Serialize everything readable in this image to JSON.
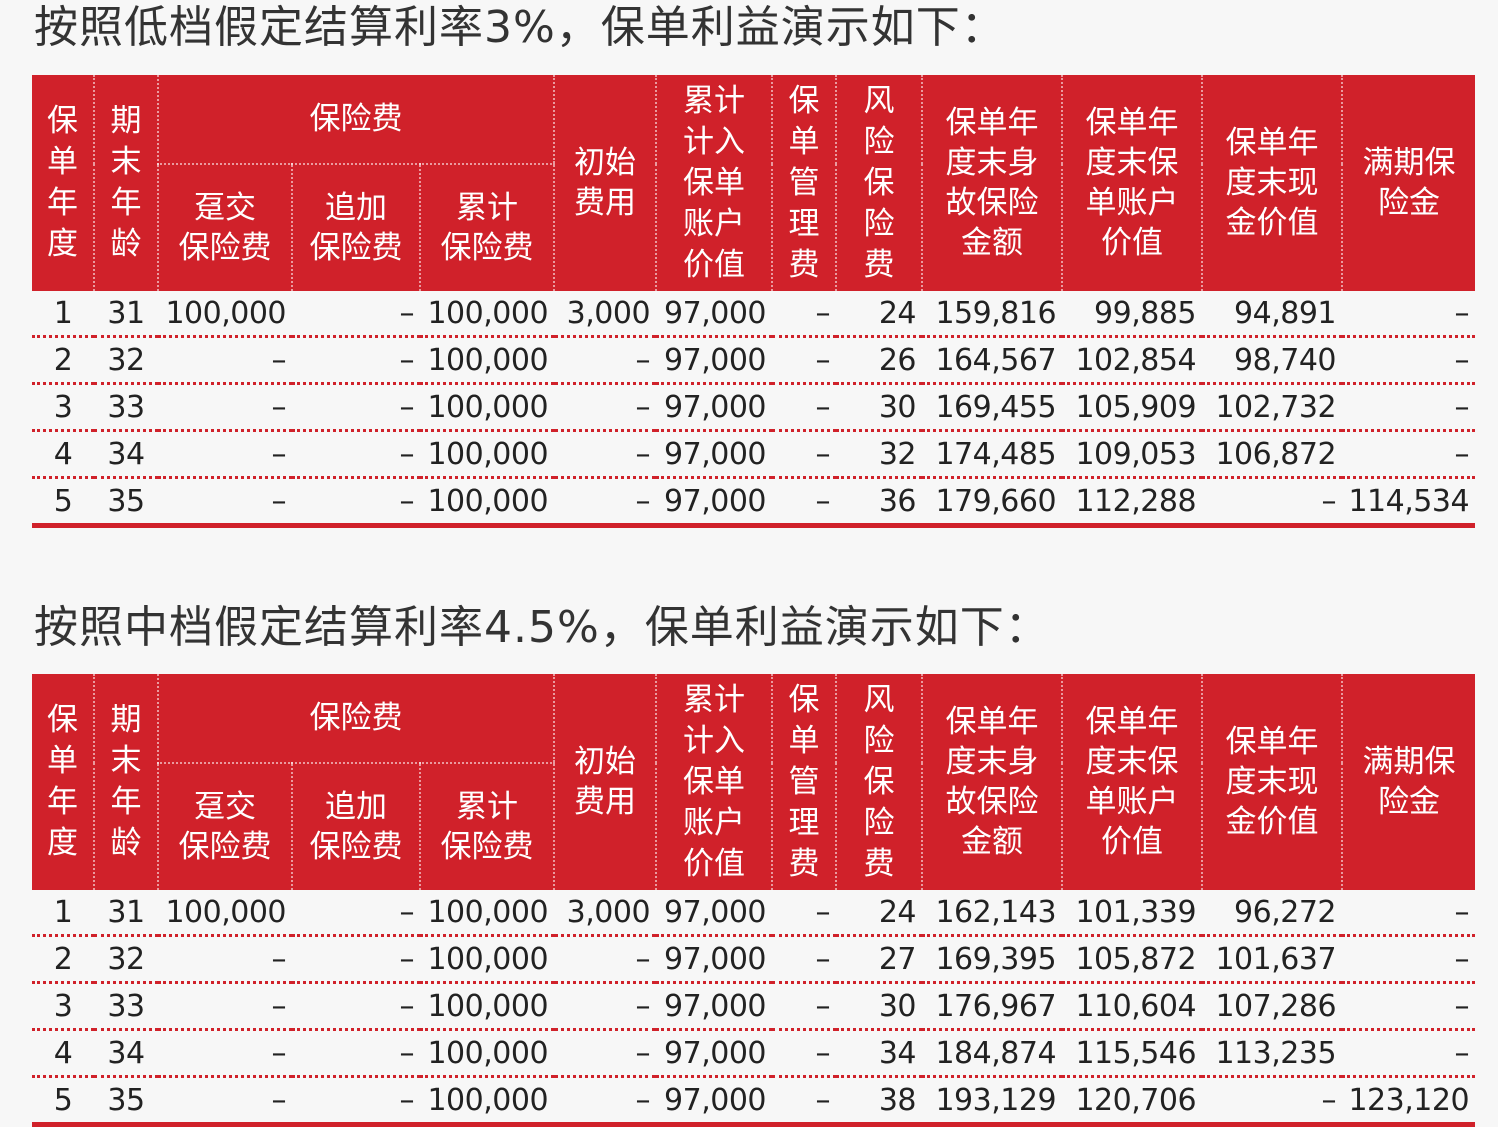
{
  "headers": {
    "year": "保单年度",
    "age": "期末年龄",
    "premium_group": "保险费",
    "single_premium": [
      "趸交",
      "保险费"
    ],
    "additional_premium": [
      "追加",
      "保险费"
    ],
    "cumulative_premium": [
      "累计",
      "保险费"
    ],
    "initial_fee": [
      "初始",
      "费用"
    ],
    "account_value_in": "累计计入保单账户价值",
    "management_fee": "保单管理费",
    "risk_premium": "风险保险费",
    "death_benefit": [
      "保单年",
      "度末身",
      "故保险",
      "金额"
    ],
    "account_value": [
      "保单年",
      "度末保",
      "单账户",
      "价值"
    ],
    "cash_value": [
      "保单年",
      "度末现",
      "金价值"
    ],
    "maturity_benefit": [
      "满期保",
      "险金"
    ]
  },
  "low": {
    "title": "按照低档假定结算利率3%，保单利益演示如下：",
    "rows": [
      [
        "1",
        "31",
        "100,000",
        "–",
        "100,000",
        "3,000",
        "97,000",
        "–",
        "24",
        "159,816",
        "99,885",
        "94,891",
        "–"
      ],
      [
        "2",
        "32",
        "–",
        "–",
        "100,000",
        "–",
        "97,000",
        "–",
        "26",
        "164,567",
        "102,854",
        "98,740",
        "–"
      ],
      [
        "3",
        "33",
        "–",
        "–",
        "100,000",
        "–",
        "97,000",
        "–",
        "30",
        "169,455",
        "105,909",
        "102,732",
        "–"
      ],
      [
        "4",
        "34",
        "–",
        "–",
        "100,000",
        "–",
        "97,000",
        "–",
        "32",
        "174,485",
        "109,053",
        "106,872",
        "–"
      ],
      [
        "5",
        "35",
        "–",
        "–",
        "100,000",
        "–",
        "97,000",
        "–",
        "36",
        "179,660",
        "112,288",
        "–",
        "114,534"
      ]
    ]
  },
  "mid": {
    "title": "按照中档假定结算利率4.5%，保单利益演示如下：",
    "rows": [
      [
        "1",
        "31",
        "100,000",
        "–",
        "100,000",
        "3,000",
        "97,000",
        "–",
        "24",
        "162,143",
        "101,339",
        "96,272",
        "–"
      ],
      [
        "2",
        "32",
        "–",
        "–",
        "100,000",
        "–",
        "97,000",
        "–",
        "27",
        "169,395",
        "105,872",
        "101,637",
        "–"
      ],
      [
        "3",
        "33",
        "–",
        "–",
        "100,000",
        "–",
        "97,000",
        "–",
        "30",
        "176,967",
        "110,604",
        "107,286",
        "–"
      ],
      [
        "4",
        "34",
        "–",
        "–",
        "100,000",
        "–",
        "97,000",
        "–",
        "34",
        "184,874",
        "115,546",
        "113,235",
        "–"
      ],
      [
        "5",
        "35",
        "–",
        "–",
        "100,000",
        "–",
        "97,000",
        "–",
        "38",
        "193,129",
        "120,706",
        "–",
        "123,120"
      ]
    ]
  },
  "colors": {
    "header_bg": "#d0212a",
    "rule": "#d0212a"
  }
}
